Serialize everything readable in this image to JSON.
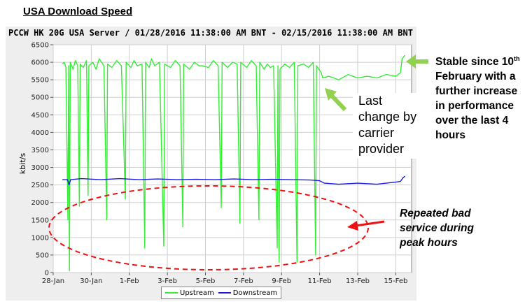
{
  "heading": "USA Download Speed",
  "chart_data": {
    "type": "line",
    "title": "PCCW HK 20G USA Server / 01/28/2016 11:38:00 AM BNT - 02/15/2016 11:38:00 AM BNT",
    "ylabel": "kbit/s",
    "xlabel": "",
    "ylim": [
      0,
      6500
    ],
    "yticks": [
      0,
      500,
      1000,
      1500,
      2000,
      2500,
      3000,
      3500,
      4000,
      4500,
      5000,
      5500,
      6000,
      6500
    ],
    "xlim": [
      "2016-01-28T00:00",
      "2016-02-15T20:00"
    ],
    "xticks": [
      {
        "date": "2016-01-28",
        "label": "28-Jan"
      },
      {
        "date": "2016-01-30",
        "label": "30-Jan"
      },
      {
        "date": "2016-02-01",
        "label": "1-Feb"
      },
      {
        "date": "2016-02-03",
        "label": "3-Feb"
      },
      {
        "date": "2016-02-05",
        "label": "5-Feb"
      },
      {
        "date": "2016-02-07",
        "label": "7-Feb"
      },
      {
        "date": "2016-02-09",
        "label": "9-Feb"
      },
      {
        "date": "2016-02-11",
        "label": "11-Feb"
      },
      {
        "date": "2016-02-13",
        "label": "13-Feb"
      },
      {
        "date": "2016-02-15",
        "label": "15-Feb"
      }
    ],
    "grid": true,
    "legend_position": "bottom",
    "series": [
      {
        "name": "Upstream",
        "color": "#33ee33",
        "points": [
          [
            "2016-01-28T11:38",
            5950
          ],
          [
            "2016-01-28T14:00",
            6000
          ],
          [
            "2016-01-28T16:00",
            5850
          ],
          [
            "2016-01-28T18:30",
            1500
          ],
          [
            "2016-01-28T19:30",
            5900
          ],
          [
            "2016-01-28T20:30",
            50
          ],
          [
            "2016-01-28T21:30",
            6000
          ],
          [
            "2016-01-29T01:00",
            5800
          ],
          [
            "2016-01-29T04:00",
            6050
          ],
          [
            "2016-01-29T07:00",
            5900
          ],
          [
            "2016-01-29T09:00",
            1900
          ],
          [
            "2016-01-29T10:00",
            5950
          ],
          [
            "2016-01-29T14:00",
            5850
          ],
          [
            "2016-01-29T18:00",
            6050
          ],
          [
            "2016-01-29T20:00",
            2200
          ],
          [
            "2016-01-29T21:00",
            5900
          ],
          [
            "2016-01-30T02:00",
            6000
          ],
          [
            "2016-01-30T06:00",
            5800
          ],
          [
            "2016-01-30T10:00",
            6100
          ],
          [
            "2016-01-30T16:00",
            5900
          ],
          [
            "2016-01-30T19:30",
            1500
          ],
          [
            "2016-01-30T20:30",
            5950
          ],
          [
            "2016-01-31T02:00",
            5850
          ],
          [
            "2016-01-31T08:00",
            6050
          ],
          [
            "2016-01-31T14:00",
            5900
          ],
          [
            "2016-01-31T19:00",
            2100
          ],
          [
            "2016-01-31T20:00",
            6000
          ],
          [
            "2016-02-01T02:00",
            5850
          ],
          [
            "2016-02-01T06:00",
            6050
          ],
          [
            "2016-02-01T10:00",
            5900
          ],
          [
            "2016-02-01T16:00",
            5950
          ],
          [
            "2016-02-01T19:30",
            700
          ],
          [
            "2016-02-01T20:30",
            6000
          ],
          [
            "2016-02-02T01:00",
            5850
          ],
          [
            "2016-02-02T04:00",
            6100
          ],
          [
            "2016-02-02T08:00",
            5900
          ],
          [
            "2016-02-02T14:00",
            6000
          ],
          [
            "2016-02-02T19:30",
            750
          ],
          [
            "2016-02-02T20:30",
            5950
          ],
          [
            "2016-02-03T04:00",
            5850
          ],
          [
            "2016-02-03T10:00",
            6050
          ],
          [
            "2016-02-03T16:00",
            5900
          ],
          [
            "2016-02-03T19:30",
            1300
          ],
          [
            "2016-02-03T20:30",
            5950
          ],
          [
            "2016-02-04T04:00",
            5800
          ],
          [
            "2016-02-04T10:00",
            6000
          ],
          [
            "2016-02-04T16:00",
            5900
          ],
          [
            "2016-02-04T20:00",
            5900
          ],
          [
            "2016-02-05T04:00",
            5850
          ],
          [
            "2016-02-05T10:00",
            6050
          ],
          [
            "2016-02-05T16:00",
            5900
          ],
          [
            "2016-02-05T20:00",
            1850
          ],
          [
            "2016-02-05T21:00",
            6000
          ],
          [
            "2016-02-06T04:00",
            5850
          ],
          [
            "2016-02-06T10:00",
            6000
          ],
          [
            "2016-02-06T16:00",
            5950
          ],
          [
            "2016-02-06T19:30",
            1400
          ],
          [
            "2016-02-06T20:30",
            6000
          ],
          [
            "2016-02-07T04:00",
            5850
          ],
          [
            "2016-02-07T10:00",
            6050
          ],
          [
            "2016-02-07T16:00",
            5900
          ],
          [
            "2016-02-07T19:30",
            1500
          ],
          [
            "2016-02-07T20:30",
            6000
          ],
          [
            "2016-02-08T02:00",
            5800
          ],
          [
            "2016-02-08T06:00",
            5950
          ],
          [
            "2016-02-08T10:00",
            5850
          ],
          [
            "2016-02-08T14:00",
            5900
          ],
          [
            "2016-02-08T18:30",
            700
          ],
          [
            "2016-02-08T19:30",
            5900
          ],
          [
            "2016-02-08T21:00",
            300
          ],
          [
            "2016-02-08T22:00",
            5800
          ],
          [
            "2016-02-09T04:00",
            5950
          ],
          [
            "2016-02-09T10:00",
            5850
          ],
          [
            "2016-02-09T16:00",
            6000
          ],
          [
            "2016-02-09T19:30",
            300
          ],
          [
            "2016-02-09T20:30",
            5900
          ],
          [
            "2016-02-10T04:00",
            5950
          ],
          [
            "2016-02-10T10:00",
            5850
          ],
          [
            "2016-02-10T16:00",
            6000
          ],
          [
            "2016-02-10T19:00",
            500
          ],
          [
            "2016-02-10T20:00",
            5900
          ],
          [
            "2016-02-11T02:00",
            5700
          ],
          [
            "2016-02-11T04:00",
            5550
          ],
          [
            "2016-02-11T12:00",
            5600
          ],
          [
            "2016-02-12T00:00",
            5500
          ],
          [
            "2016-02-12T12:00",
            5650
          ],
          [
            "2016-02-13T00:00",
            5550
          ],
          [
            "2016-02-13T12:00",
            5600
          ],
          [
            "2016-02-14T00:00",
            5550
          ],
          [
            "2016-02-14T12:00",
            5650
          ],
          [
            "2016-02-15T00:00",
            5600
          ],
          [
            "2016-02-15T06:00",
            5700
          ],
          [
            "2016-02-15T08:00",
            6100
          ],
          [
            "2016-02-15T11:38",
            6200
          ]
        ]
      },
      {
        "name": "Downstream",
        "color": "#1a1ae0",
        "points": [
          [
            "2016-01-28T11:38",
            2650
          ],
          [
            "2016-01-28T18:00",
            2650
          ],
          [
            "2016-01-28T20:00",
            2500
          ],
          [
            "2016-01-28T22:00",
            2650
          ],
          [
            "2016-01-29T12:00",
            2680
          ],
          [
            "2016-01-30T12:00",
            2650
          ],
          [
            "2016-01-31T12:00",
            2680
          ],
          [
            "2016-02-01T12:00",
            2650
          ],
          [
            "2016-02-02T12:00",
            2670
          ],
          [
            "2016-02-03T12:00",
            2650
          ],
          [
            "2016-02-04T12:00",
            2660
          ],
          [
            "2016-02-05T12:00",
            2650
          ],
          [
            "2016-02-06T12:00",
            2670
          ],
          [
            "2016-02-07T12:00",
            2650
          ],
          [
            "2016-02-08T12:00",
            2660
          ],
          [
            "2016-02-09T12:00",
            2650
          ],
          [
            "2016-02-10T12:00",
            2640
          ],
          [
            "2016-02-11T00:00",
            2620
          ],
          [
            "2016-02-11T06:00",
            2550
          ],
          [
            "2016-02-12T00:00",
            2520
          ],
          [
            "2016-02-13T00:00",
            2550
          ],
          [
            "2016-02-14T00:00",
            2520
          ],
          [
            "2016-02-15T00:00",
            2580
          ],
          [
            "2016-02-15T06:00",
            2600
          ],
          [
            "2016-02-15T09:00",
            2700
          ],
          [
            "2016-02-15T11:38",
            2750
          ]
        ]
      }
    ]
  },
  "annotations": {
    "stable_pre": "Stable since 10",
    "stable_sup": "th",
    "stable_post": " February with a further increase in performance over the last 4 hours",
    "last_change": "Last change by carrier provider",
    "bad_service": "Repeated bad service during peak hours"
  },
  "colors": {
    "arrow_green": "#92d050",
    "arrow_red": "#ee1111",
    "ellipse": "#ee1111"
  }
}
